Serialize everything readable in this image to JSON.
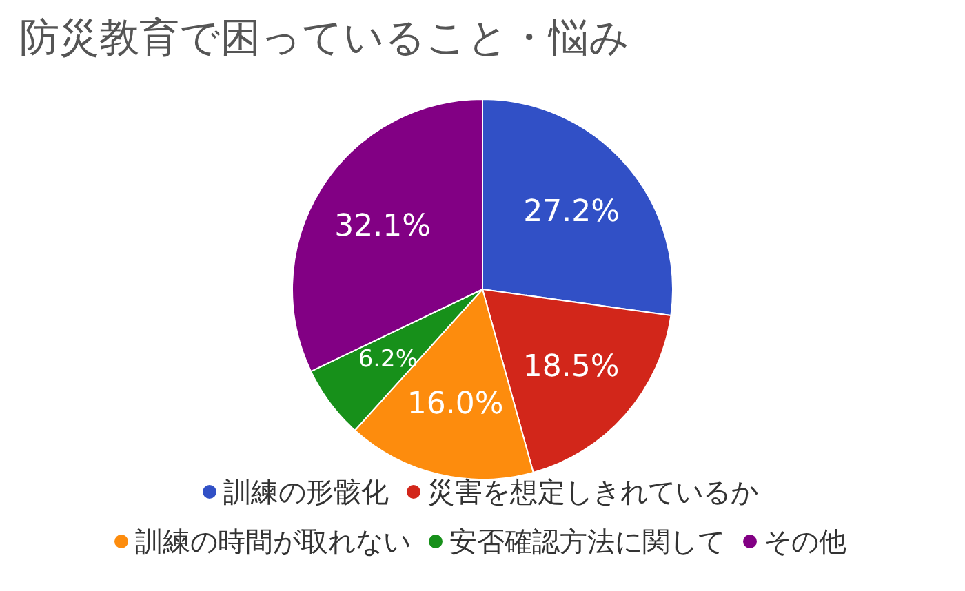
{
  "chart_data": {
    "type": "pie",
    "title": "防災教育で困っていること・悩み",
    "categories": [
      "訓練の形骸化",
      "災害を想定しきれているか",
      "訓練の時間が取れない",
      "安否確認方法に関して",
      "その他"
    ],
    "values": [
      27.2,
      18.5,
      16.0,
      6.2,
      32.1
    ],
    "value_labels": [
      "27.2%",
      "18.5%",
      "16.0%",
      "6.2%",
      "32.1%"
    ],
    "colors": [
      "#3150c6",
      "#d2261a",
      "#fd8c0d",
      "#17901a",
      "#820084"
    ],
    "legend": "bottom"
  }
}
